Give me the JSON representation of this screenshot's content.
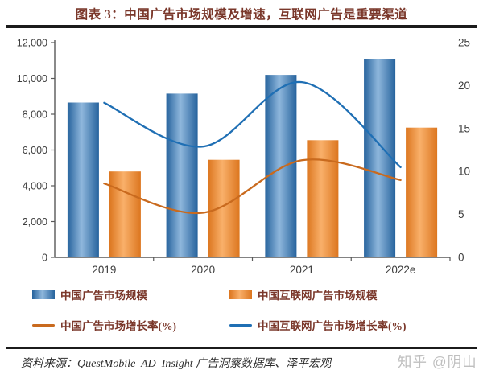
{
  "header": {
    "title": "图表 3：中国广告市场规模及增速，互联网广告是重要渠道"
  },
  "chart_data": {
    "type": "combo_bar_line",
    "categories": [
      "2019",
      "2020",
      "2021",
      "2022e"
    ],
    "series": [
      {
        "name": "中国广告市场规模",
        "type": "bar",
        "axis": "left",
        "color_edge": "#26639d",
        "color_mid": "#8fb7dc",
        "values": [
          8650,
          9150,
          10200,
          11100
        ]
      },
      {
        "name": "中国互联网广告市场规模",
        "type": "bar",
        "axis": "left",
        "color_edge": "#dc761f",
        "color_mid": "#f9b06a",
        "values": [
          4800,
          5450,
          6550,
          7250
        ]
      },
      {
        "name": "中国广告市场增长率(%)",
        "type": "line",
        "axis": "right",
        "color": "#c96a1e",
        "values": [
          8.6,
          5.2,
          11.3,
          9.0
        ]
      },
      {
        "name": "中国互联网广告市场增长率(%)",
        "type": "line",
        "axis": "right",
        "color": "#1f6fb4",
        "values": [
          18.0,
          12.9,
          20.4,
          10.5
        ]
      }
    ],
    "left_axis": {
      "min": 0,
      "max": 12000,
      "ticks": [
        "0",
        "2,000",
        "4,000",
        "6,000",
        "8,000",
        "10,000",
        "12,000"
      ]
    },
    "right_axis": {
      "min": 0,
      "max": 25,
      "ticks": [
        "0",
        "5",
        "10",
        "15",
        "20",
        "25"
      ]
    },
    "grid": "off",
    "legend_position": "bottom"
  },
  "colors": {
    "title_text": "#7a372a",
    "legend_text": "#7a372a",
    "axis_text": "#3d3d3d",
    "axis_line": "#595959",
    "rule": "#1b1b1b",
    "watermark": "#b5b5b5"
  },
  "footer": {
    "source": "资料来源：QuestMobile  AD  Insight 广告洞察数据库、泽平宏观",
    "watermark": "知乎 @阴山"
  }
}
